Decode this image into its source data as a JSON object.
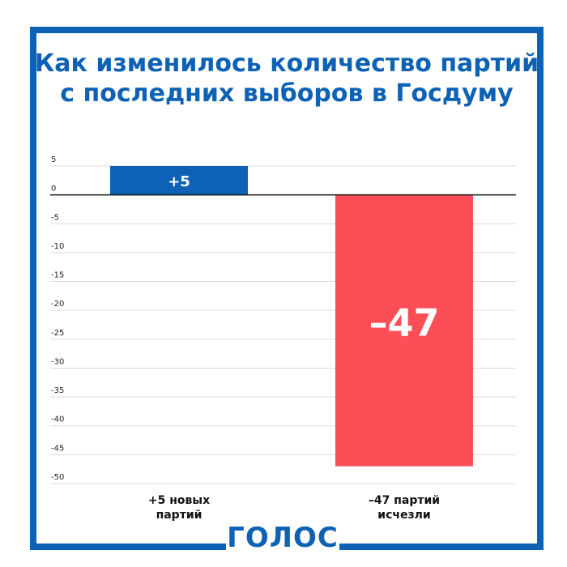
{
  "colors": {
    "brand": "#0d62b5",
    "positive": "#0d62b5",
    "negative": "#fb4e56"
  },
  "logo": {
    "text": "ГОЛОС"
  },
  "chart_data": {
    "type": "bar",
    "title": "Как изменилось количество партий с последних выборов в Госдуму",
    "xlabel": "",
    "ylabel": "",
    "ylim": [
      -50,
      5
    ],
    "yticks": [
      5,
      0,
      -5,
      -10,
      -15,
      -20,
      -25,
      -30,
      -35,
      -40,
      -45,
      -50
    ],
    "grid": true,
    "categories": [
      "+5 новых партий",
      "–47 партий исчезли"
    ],
    "category_lines": [
      [
        "+5 новых",
        "партий"
      ],
      [
        "–47 партий",
        "исчезли"
      ]
    ],
    "values": [
      5,
      -47
    ],
    "data_labels": [
      "+5",
      "–47"
    ]
  }
}
